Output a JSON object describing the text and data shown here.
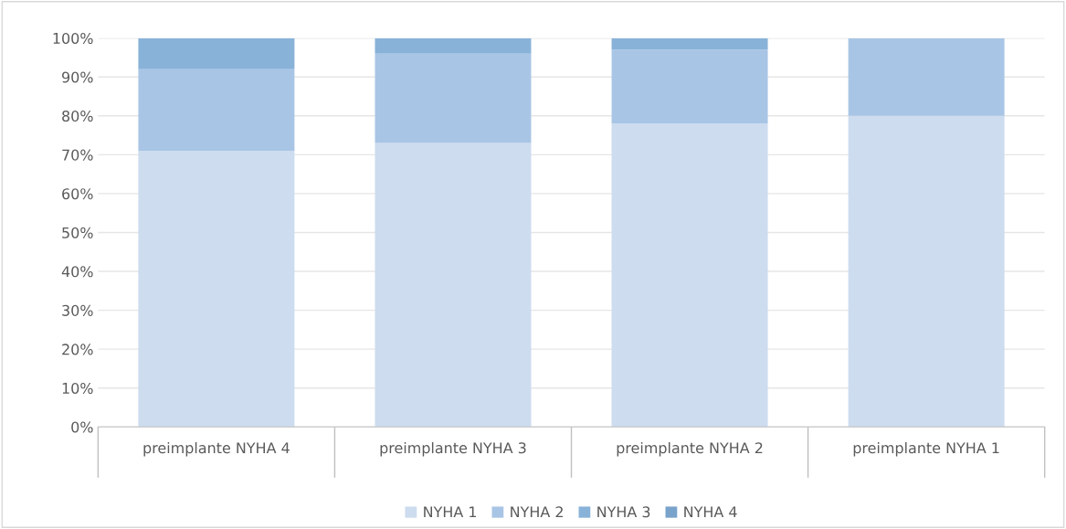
{
  "chart_data": {
    "type": "bar",
    "stacked": true,
    "categories": [
      "preimplante NYHA 4",
      "preimplante NYHA 3",
      "preimplante NYHA 2",
      "preimplante NYHA 1"
    ],
    "series": [
      {
        "name": "NYHA 1",
        "color": "#cddcef",
        "values": [
          71,
          73,
          78,
          80
        ]
      },
      {
        "name": "NYHA 2",
        "color": "#a9c5e5",
        "values": [
          21,
          23,
          19,
          20
        ]
      },
      {
        "name": "NYHA 3",
        "color": "#89b2d8",
        "values": [
          8,
          4,
          3,
          0
        ]
      },
      {
        "name": "NYHA 4",
        "color": "#7aa3cb",
        "values": [
          0,
          0,
          0,
          0
        ]
      }
    ],
    "ylim": [
      0,
      100
    ],
    "yticks": [
      {
        "value": 0,
        "label": "0%"
      },
      {
        "value": 10,
        "label": "10%"
      },
      {
        "value": 20,
        "label": "20%"
      },
      {
        "value": 30,
        "label": "30%"
      },
      {
        "value": 40,
        "label": "40%"
      },
      {
        "value": 50,
        "label": "50%"
      },
      {
        "value": 60,
        "label": "60%"
      },
      {
        "value": 70,
        "label": "70%"
      },
      {
        "value": 80,
        "label": "80%"
      },
      {
        "value": 90,
        "label": "90%"
      },
      {
        "value": 100,
        "label": "100%"
      }
    ],
    "grid": "y",
    "legend": "bottom"
  }
}
